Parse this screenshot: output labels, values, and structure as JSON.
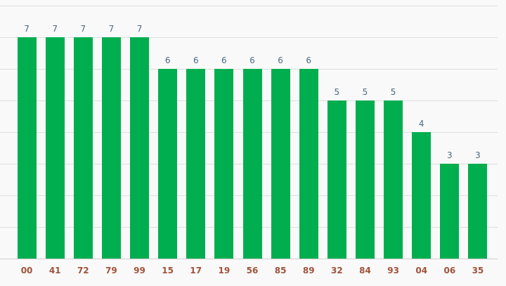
{
  "chart_data": {
    "type": "bar",
    "categories": [
      "00",
      "41",
      "72",
      "79",
      "99",
      "15",
      "17",
      "19",
      "56",
      "85",
      "89",
      "32",
      "84",
      "93",
      "04",
      "06",
      "35"
    ],
    "values": [
      7,
      7,
      7,
      7,
      7,
      6,
      6,
      6,
      6,
      6,
      6,
      5,
      5,
      5,
      4,
      3,
      3
    ],
    "title": "",
    "xlabel": "",
    "ylabel": "",
    "ylim": [
      0,
      8
    ],
    "grid": true,
    "legend": "none",
    "colors": {
      "bar": "#00ae4f",
      "value_label": "#4a6a82",
      "category_label": "#a0533a",
      "gridline": "#dedede",
      "background": "#f9f9f9"
    }
  }
}
